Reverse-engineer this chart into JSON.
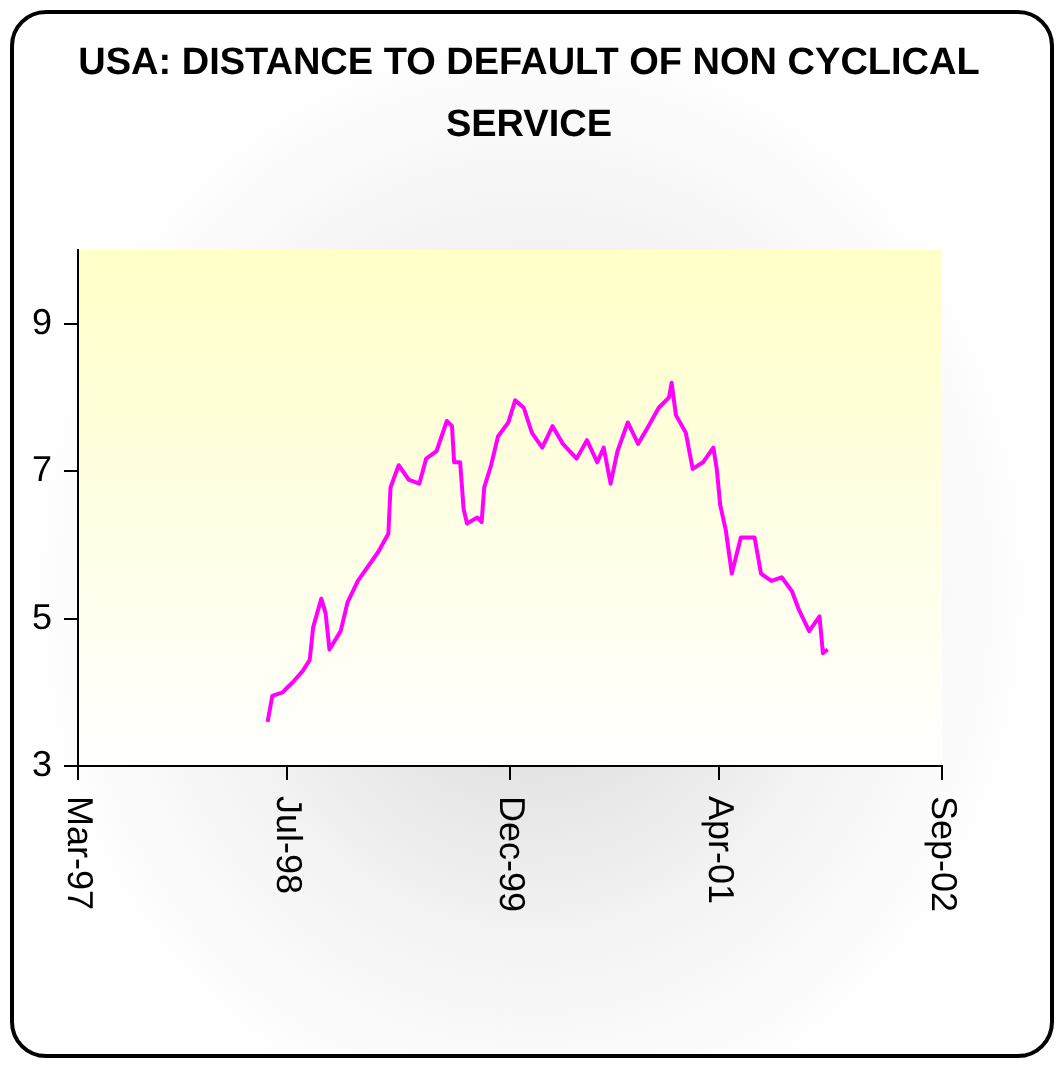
{
  "chart_data": {
    "type": "line",
    "title": "USA: DISTANCE TO DEFAULT OF NON CYCLICAL SERVICE",
    "x": [
      "1998-05-30",
      "1998-06-10",
      "1998-07-04",
      "1998-07-28",
      "1998-08-20",
      "1998-09-05",
      "1998-09-13",
      "1998-10-02",
      "1998-10-12",
      "1998-10-21",
      "1998-11-16",
      "1998-12-02",
      "1998-12-26",
      "1999-01-19",
      "1999-02-11",
      "1999-03-07",
      "1999-03-12",
      "1999-03-31",
      "1999-04-24",
      "1999-05-18",
      "1999-06-03",
      "1999-06-27",
      "1999-07-21",
      "1999-08-02",
      "1999-08-07",
      "1999-08-21",
      "1999-08-29",
      "1999-09-06",
      "1999-09-30",
      "1999-10-10",
      "1999-10-16",
      "1999-11-01",
      "1999-11-17",
      "1999-12-11",
      "1999-12-27",
      "2000-01-16",
      "2000-02-04",
      "2000-02-28",
      "2000-03-23",
      "2000-04-16",
      "2000-05-18",
      "2000-06-11",
      "2000-07-05",
      "2000-07-20",
      "2000-08-05",
      "2000-08-21",
      "2000-09-14",
      "2000-10-08",
      "2000-11-01",
      "2000-11-25",
      "2000-12-19",
      "2000-12-25",
      "2001-01-04",
      "2001-01-27",
      "2001-02-12",
      "2001-03-08",
      "2001-04-01",
      "2001-04-09",
      "2001-04-17",
      "2001-04-30",
      "2001-05-14",
      "2001-06-04",
      "2001-07-06",
      "2001-07-21",
      "2001-08-14",
      "2001-09-07",
      "2001-10-01",
      "2001-10-17",
      "2001-11-10",
      "2001-12-04",
      "2001-12-12",
      "2001-12-23"
    ],
    "series": [
      {
        "color": "#ff00ff",
        "values": [
          3.6,
          3.95,
          4.0,
          4.14,
          4.29,
          4.44,
          4.88,
          5.27,
          5.07,
          4.58,
          4.83,
          5.22,
          5.51,
          5.71,
          5.9,
          6.15,
          6.78,
          7.08,
          6.88,
          6.83,
          7.17,
          7.27,
          7.68,
          7.61,
          7.12,
          7.12,
          6.49,
          6.29,
          6.37,
          6.31,
          6.78,
          7.08,
          7.47,
          7.66,
          7.96,
          7.86,
          7.52,
          7.32,
          7.61,
          7.37,
          7.17,
          7.42,
          7.12,
          7.32,
          6.83,
          7.27,
          7.66,
          7.37,
          7.61,
          7.86,
          8.0,
          8.2,
          7.76,
          7.52,
          7.03,
          7.12,
          7.32,
          7.03,
          6.54,
          6.2,
          5.61,
          6.1,
          6.1,
          5.61,
          5.51,
          5.56,
          5.37,
          5.12,
          4.83,
          5.03,
          4.53,
          4.58
        ]
      }
    ],
    "xlim": [
      "1997-03-15",
      "2002-09-15"
    ],
    "xticks": [
      {
        "value": "1997-03-15",
        "label": "Mar-97"
      },
      {
        "value": "1998-07-15",
        "label": "Jul-98"
      },
      {
        "value": "1999-12-15",
        "label": "Dec-99"
      },
      {
        "value": "2001-04-15",
        "label": "Apr-01"
      },
      {
        "value": "2002-09-15",
        "label": "Sep-02"
      }
    ],
    "ylim": [
      3,
      10
    ],
    "yticks": [
      3,
      5,
      7,
      9
    ],
    "grid": false,
    "legend": false,
    "marker": "none",
    "line_style": "solid"
  }
}
